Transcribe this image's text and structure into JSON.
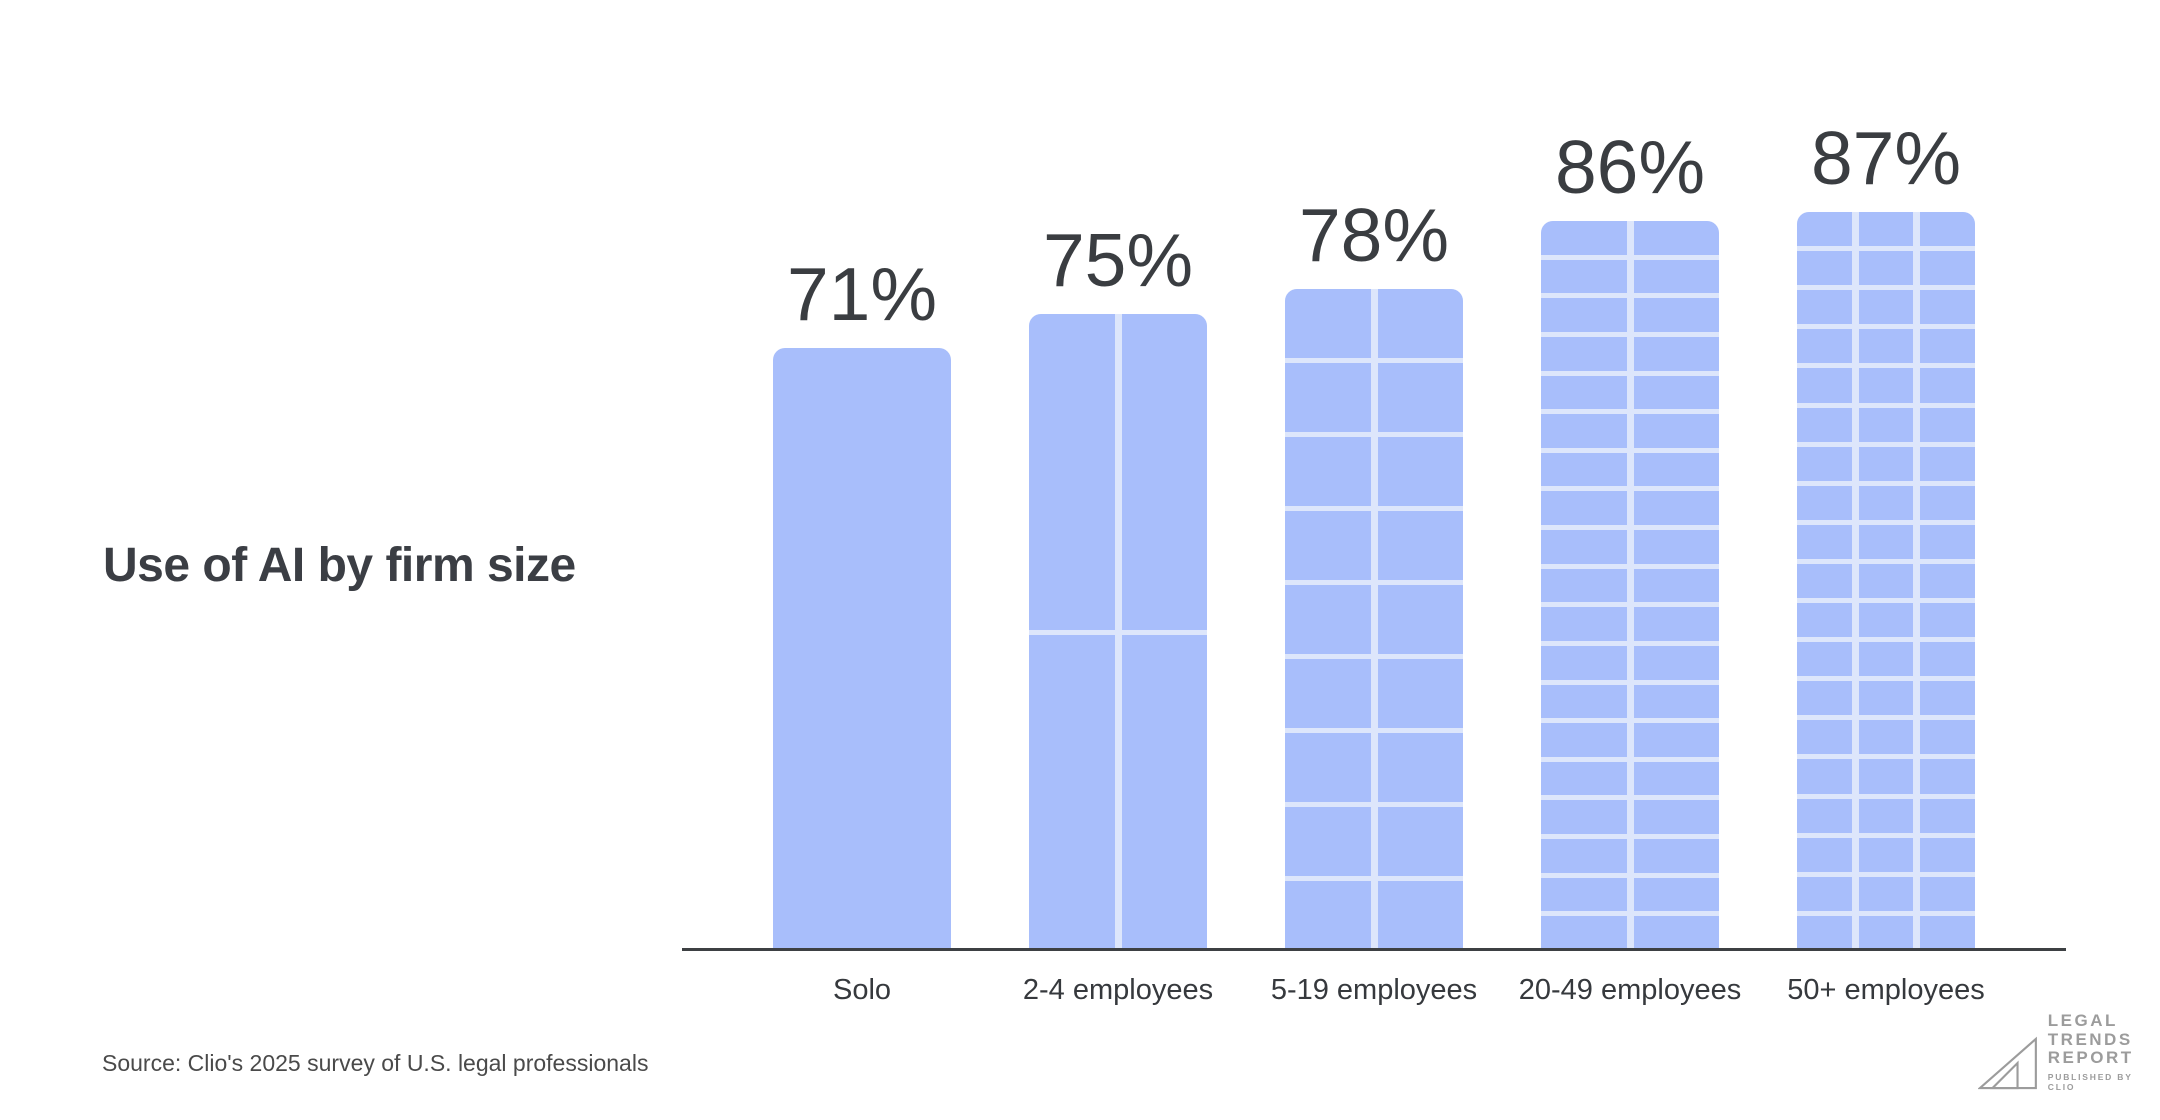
{
  "title": "Use of AI by firm size",
  "source": "Source: Clio's 2025 survey of U.S. legal professionals",
  "logo": {
    "line1": "LEGAL",
    "line2": "TRENDS",
    "line3": "REPORT",
    "tagline": "PUBLISHED BY CLIO"
  },
  "colors": {
    "bar_fill": "#a8befb",
    "grid_line": "#dde6fb",
    "axis": "#3d4043",
    "title_text": "#3b3e44",
    "label_text": "#36393d",
    "value_text": "#3a3d41",
    "source_text": "#4a4a4a",
    "logo_gray": "#9c9c9c"
  },
  "chart_data": {
    "type": "bar",
    "title": "Use of AI by firm size",
    "categories": [
      "Solo",
      "2-4 employees",
      "5-19 employees",
      "20-49 employees",
      "50+ employees"
    ],
    "values": [
      71,
      75,
      78,
      86,
      87
    ],
    "value_labels": [
      "71%",
      "75%",
      "78%",
      "86%",
      "87%"
    ],
    "unit": "%",
    "ylim": [
      0,
      100
    ],
    "grid": "off",
    "legend": "none",
    "bar_segment_grid": [
      {
        "columns": 1,
        "rows": 1
      },
      {
        "columns": 2,
        "rows": 2
      },
      {
        "columns": 2,
        "rows": 9
      },
      {
        "columns": 2,
        "rows": 19
      },
      {
        "columns": 3,
        "rows": 19
      }
    ]
  }
}
